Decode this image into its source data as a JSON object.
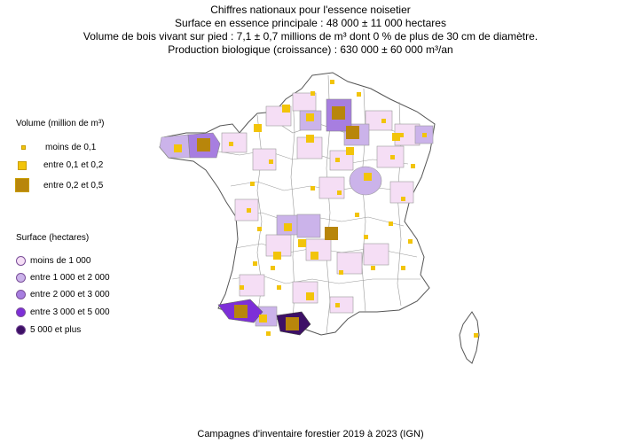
{
  "title_lines": [
    "Chiffres nationaux pour l'essence noisetier",
    "Surface en essence principale : 48 000 ± 11 000 hectares",
    "Volume de bois vivant sur pied : 7,1 ± 0,7 millions de m³ dont 0 % de plus de 30 cm de diamètre.",
    "Production biologique (croissance) : 630 000 ± 60 000 m³/an"
  ],
  "legend_volume": {
    "title": "Volume (million de m³)",
    "items": [
      {
        "label": "moins de 0,1"
      },
      {
        "label": "entre 0,1 et 0,2"
      },
      {
        "label": "entre 0,2 et 0,5"
      }
    ]
  },
  "legend_surface": {
    "title": "Surface (hectares)",
    "items": [
      {
        "label": "moins de 1 000",
        "color": "#f5def5"
      },
      {
        "label": "entre 1 000 et 2 000",
        "color": "#cbb3ea"
      },
      {
        "label": "entre 2 000 et 3 000",
        "color": "#a77ee0"
      },
      {
        "label": "entre 3 000 et 5 000",
        "color": "#7d2fd8"
      },
      {
        "label": "5 000 et plus",
        "color": "#3d1066"
      }
    ]
  },
  "colors": {
    "volume_square": "#f2c40a",
    "volume_square_large": "#b8860b",
    "department_border": "#888888"
  },
  "footer": "Campagnes d'inventaire forestier 2019 à 2023 (IGN)"
}
